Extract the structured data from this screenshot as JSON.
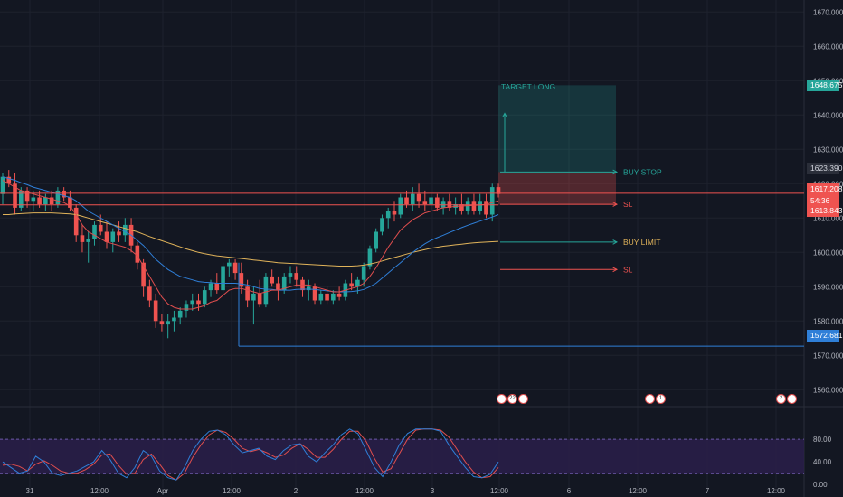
{
  "chart_data": {
    "type": "candlestick",
    "price_axis": [
      "1670.000",
      "1660.000",
      "1650.000",
      "1640.000",
      "1630.000",
      "1620.000",
      "1610.000",
      "1600.000",
      "1590.000",
      "1580.000",
      "1570.000",
      "1560.000"
    ],
    "time_axis": [
      "31",
      "12:00",
      "Apr",
      "12:00",
      "2",
      "12:00",
      "3",
      "12:00",
      "6",
      "12:00",
      "7",
      "12:00"
    ],
    "ylim": [
      1553.5,
      1673.5
    ],
    "oscillator_axis": [
      "80.00",
      "40.00",
      "0.00"
    ],
    "oscillator_ylim": [
      -6,
      112
    ],
    "candles": [
      [
        1617,
        1623,
        1614,
        1622
      ],
      [
        1622,
        1624,
        1619,
        1620
      ],
      [
        1620,
        1623,
        1611,
        1613
      ],
      [
        1613,
        1619,
        1612,
        1618
      ],
      [
        1618,
        1619,
        1613,
        1615
      ],
      [
        1615,
        1618,
        1612,
        1616
      ],
      [
        1616,
        1618,
        1613,
        1614
      ],
      [
        1614,
        1617,
        1612,
        1616
      ],
      [
        1616,
        1618,
        1612,
        1614
      ],
      [
        1614,
        1619,
        1613,
        1618
      ],
      [
        1618,
        1619,
        1615,
        1616
      ],
      [
        1616,
        1618,
        1612,
        1613
      ],
      [
        1613,
        1614,
        1603,
        1605
      ],
      [
        1605,
        1608,
        1600,
        1603
      ],
      [
        1603,
        1606,
        1597,
        1604
      ],
      [
        1604,
        1609,
        1602,
        1608
      ],
      [
        1608,
        1611,
        1605,
        1606
      ],
      [
        1606,
        1609,
        1601,
        1603
      ],
      [
        1603,
        1607,
        1600,
        1606
      ],
      [
        1606,
        1609,
        1603,
        1605
      ],
      [
        1605,
        1610,
        1603,
        1608
      ],
      [
        1608,
        1610,
        1600,
        1602
      ],
      [
        1602,
        1603,
        1595,
        1597
      ],
      [
        1597,
        1598,
        1587,
        1590
      ],
      [
        1590,
        1592,
        1584,
        1586
      ],
      [
        1586,
        1588,
        1578,
        1580
      ],
      [
        1580,
        1582,
        1577,
        1579
      ],
      [
        1579,
        1582,
        1575,
        1580
      ],
      [
        1580,
        1583,
        1577,
        1581
      ],
      [
        1581,
        1584,
        1579,
        1583
      ],
      [
        1583,
        1586,
        1581,
        1585
      ],
      [
        1585,
        1588,
        1583,
        1586
      ],
      [
        1586,
        1588,
        1583,
        1585
      ],
      [
        1585,
        1590,
        1584,
        1589
      ],
      [
        1589,
        1592,
        1587,
        1591
      ],
      [
        1591,
        1594,
        1588,
        1589
      ],
      [
        1589,
        1597,
        1588,
        1596
      ],
      [
        1596,
        1598,
        1593,
        1597
      ],
      [
        1597,
        1598,
        1592,
        1594
      ],
      [
        1594,
        1597,
        1588,
        1590
      ],
      [
        1590,
        1592,
        1584,
        1586
      ],
      [
        1586,
        1590,
        1579,
        1588
      ],
      [
        1588,
        1592,
        1584,
        1585
      ],
      [
        1585,
        1594,
        1584,
        1593
      ],
      [
        1593,
        1595,
        1590,
        1591
      ],
      [
        1591,
        1593,
        1586,
        1589
      ],
      [
        1589,
        1594,
        1588,
        1593
      ],
      [
        1593,
        1596,
        1591,
        1594
      ],
      [
        1594,
        1596,
        1590,
        1592
      ],
      [
        1592,
        1593,
        1587,
        1589
      ],
      [
        1589,
        1592,
        1586,
        1590
      ],
      [
        1590,
        1591,
        1585,
        1586
      ],
      [
        1586,
        1589,
        1585,
        1588
      ],
      [
        1588,
        1590,
        1585,
        1586
      ],
      [
        1586,
        1589,
        1585,
        1588
      ],
      [
        1588,
        1590,
        1586,
        1587
      ],
      [
        1587,
        1592,
        1586,
        1591
      ],
      [
        1591,
        1594,
        1589,
        1590
      ],
      [
        1590,
        1593,
        1588,
        1592
      ],
      [
        1592,
        1597,
        1590,
        1596
      ],
      [
        1596,
        1602,
        1595,
        1601
      ],
      [
        1601,
        1607,
        1600,
        1606
      ],
      [
        1606,
        1611,
        1605,
        1610
      ],
      [
        1610,
        1613,
        1607,
        1612
      ],
      [
        1612,
        1615,
        1609,
        1611
      ],
      [
        1611,
        1617,
        1610,
        1616
      ],
      [
        1616,
        1618,
        1613,
        1614
      ],
      [
        1614,
        1619,
        1612,
        1617
      ],
      [
        1617,
        1620,
        1613,
        1615
      ],
      [
        1615,
        1618,
        1612,
        1614
      ],
      [
        1614,
        1617,
        1612,
        1616
      ],
      [
        1616,
        1617,
        1612,
        1613
      ],
      [
        1613,
        1616,
        1611,
        1615
      ],
      [
        1615,
        1617,
        1612,
        1613
      ],
      [
        1613,
        1616,
        1611,
        1614
      ],
      [
        1614,
        1617,
        1611,
        1612
      ],
      [
        1612,
        1616,
        1611,
        1615
      ],
      [
        1615,
        1617,
        1611,
        1612
      ],
      [
        1612,
        1617,
        1611,
        1615
      ],
      [
        1615,
        1617,
        1610,
        1611
      ],
      [
        1611,
        1620,
        1609,
        1619
      ],
      [
        1619,
        1620,
        1616,
        1617
      ]
    ],
    "ema_fast": [
      1621,
      1620,
      1619,
      1618,
      1617.5,
      1617,
      1616.5,
      1616,
      1615.5,
      1615,
      1614.5,
      1613.5,
      1611,
      1608,
      1606,
      1605,
      1604,
      1603,
      1602.5,
      1602,
      1601.5,
      1600.5,
      1599,
      1596,
      1593,
      1590,
      1587,
      1585,
      1584,
      1583.5,
      1583.5,
      1583.5,
      1584,
      1584.5,
      1585.5,
      1586,
      1587.5,
      1589,
      1589.5,
      1589.5,
      1589,
      1588.5,
      1588,
      1588.5,
      1589,
      1589,
      1589.5,
      1590,
      1590.5,
      1590.5,
      1590.5,
      1590,
      1589.5,
      1589,
      1588.5,
      1588.5,
      1589,
      1589.5,
      1590,
      1591,
      1593,
      1595.5,
      1598.5,
      1601.5,
      1604,
      1606.5,
      1608,
      1609.5,
      1610.5,
      1611.5,
      1612,
      1612.5,
      1613,
      1613.2,
      1613.4,
      1613.5,
      1613.6,
      1613.7,
      1613.8,
      1614,
      1614.5,
      1615
    ],
    "ema_mid": [
      1622,
      1621.5,
      1621,
      1620.3,
      1619.7,
      1619,
      1618.5,
      1618,
      1617.5,
      1617,
      1616.5,
      1616,
      1615,
      1613.5,
      1612,
      1611,
      1610,
      1609,
      1608,
      1607,
      1606,
      1605,
      1603.5,
      1602,
      1600,
      1598,
      1596.5,
      1595,
      1594,
      1593,
      1592.5,
      1592,
      1591.5,
      1591.3,
      1591.2,
      1591,
      1591,
      1591,
      1591,
      1590.8,
      1590.5,
      1590,
      1589.5,
      1589.3,
      1589.2,
      1589,
      1589,
      1589,
      1589.2,
      1589.3,
      1589.3,
      1589.2,
      1589,
      1588.8,
      1588.6,
      1588.5,
      1588.5,
      1588.6,
      1588.8,
      1589.2,
      1590,
      1591,
      1592.5,
      1594,
      1595.5,
      1597,
      1598.5,
      1600,
      1601.3,
      1602.5,
      1603.5,
      1604.3,
      1605,
      1605.8,
      1606.5,
      1607.2,
      1607.9,
      1608.5,
      1609.1,
      1609.7,
      1610.3,
      1611
    ],
    "ema_slow": [
      1611,
      1611,
      1611.2,
      1611.3,
      1611.4,
      1611.5,
      1611.5,
      1611.5,
      1611.5,
      1611.4,
      1611.3,
      1611.2,
      1611,
      1610.5,
      1610,
      1609.5,
      1609,
      1608.5,
      1608,
      1607.5,
      1607,
      1606.5,
      1606,
      1605.3,
      1604.6,
      1604,
      1603.4,
      1602.8,
      1602.2,
      1601.6,
      1601,
      1600.5,
      1600,
      1599.6,
      1599.3,
      1599,
      1598.8,
      1598.6,
      1598.4,
      1598.2,
      1598,
      1597.8,
      1597.6,
      1597.4,
      1597.2,
      1597,
      1596.9,
      1596.8,
      1596.7,
      1596.6,
      1596.5,
      1596.4,
      1596.3,
      1596.2,
      1596.1,
      1596,
      1596,
      1596,
      1596.1,
      1596.3,
      1596.6,
      1597,
      1597.5,
      1598,
      1598.5,
      1599,
      1599.5,
      1600,
      1600.4,
      1600.8,
      1601.2,
      1601.5,
      1601.8,
      1602,
      1602.2,
      1602.4,
      1602.6,
      1602.8,
      1602.9,
      1603,
      1603.1,
      1603.2
    ],
    "stoch_k": [
      40,
      30,
      20,
      24,
      50,
      40,
      20,
      16,
      20,
      24,
      32,
      40,
      60,
      44,
      20,
      12,
      30,
      60,
      50,
      24,
      12,
      8,
      30,
      60,
      80,
      94,
      96,
      88,
      70,
      56,
      60,
      64,
      50,
      44,
      60,
      70,
      72,
      50,
      40,
      56,
      70,
      88,
      98,
      90,
      60,
      30,
      14,
      40,
      70,
      90,
      98,
      98,
      98,
      94,
      70,
      50,
      30,
      14,
      12,
      18,
      40
    ],
    "stoch_d": [
      34,
      36,
      32,
      24,
      36,
      42,
      34,
      24,
      20,
      20,
      26,
      36,
      52,
      54,
      34,
      18,
      20,
      44,
      54,
      36,
      16,
      8,
      20,
      48,
      70,
      88,
      96,
      92,
      80,
      64,
      58,
      62,
      56,
      48,
      52,
      64,
      72,
      62,
      48,
      48,
      62,
      80,
      94,
      94,
      76,
      46,
      22,
      28,
      54,
      80,
      96,
      98,
      98,
      96,
      84,
      62,
      40,
      22,
      12,
      14,
      30
    ],
    "current_price": "1617.208",
    "countdown": "54:36",
    "price_high_tag": "1623.390",
    "price_low_tag": "1613.843",
    "target_tag": "1648.675",
    "low_level_tag": "1572.681",
    "levels": {
      "target": 1648.675,
      "buy_stop": 1623.39,
      "sl_upper": 1613.843,
      "buy_limit": 1602.5,
      "sl_lower": 1595,
      "horizontal_low": 1572.681,
      "red_line": 1617.208
    },
    "labels": {
      "target_long": "TARGET LONG",
      "buy_stop": "BUY STOP",
      "sl": "SL",
      "buy_limit": "BUY LIMIT"
    },
    "colors": {
      "bg": "#131722",
      "bull": "#26a69a",
      "bear": "#ef5350",
      "ema_fast": "#e04e4e",
      "ema_mid": "#2f7fd8",
      "ema_slow": "#e0b35a",
      "osc_band": "#2a1f4a"
    }
  },
  "events": [
    {
      "text": "22"
    },
    {
      "text": "1"
    },
    {
      "text": "2"
    }
  ]
}
